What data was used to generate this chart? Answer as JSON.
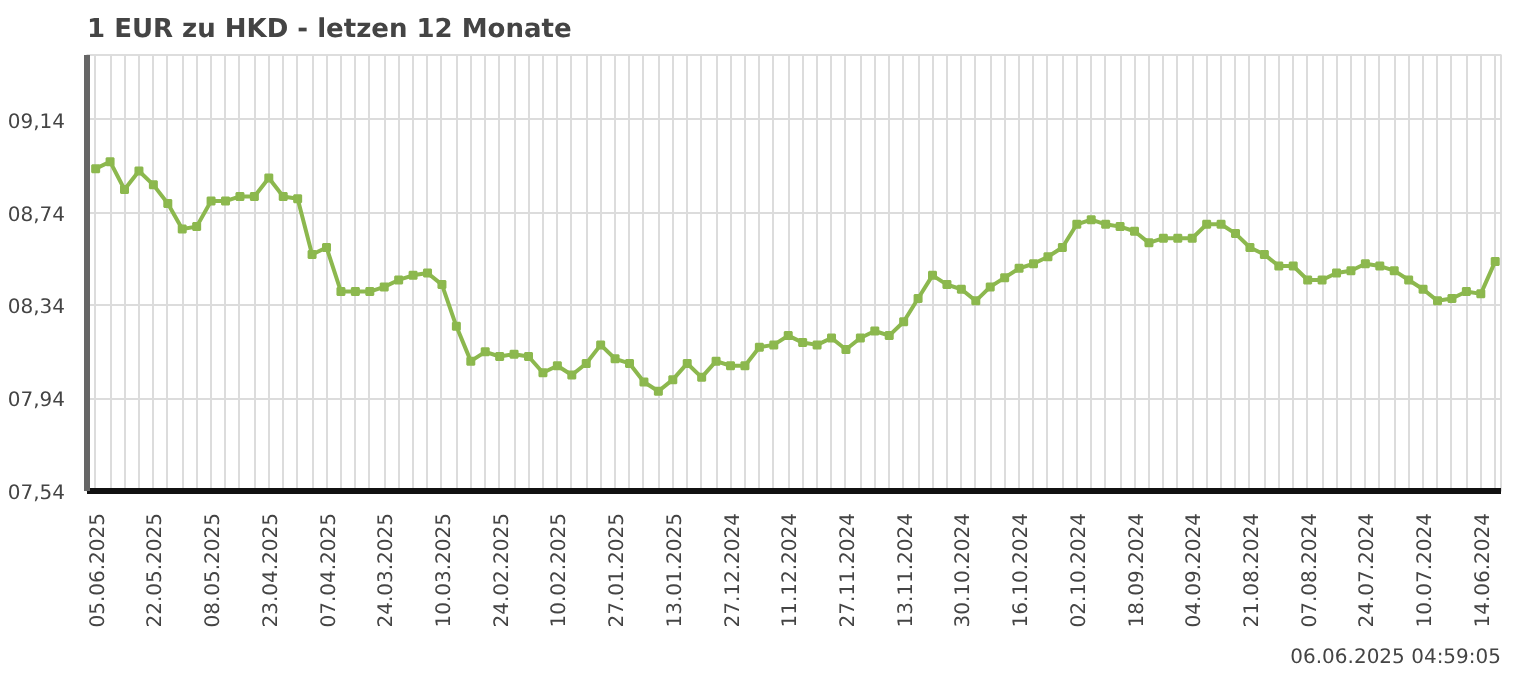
{
  "chart_data": {
    "type": "line",
    "title": "1 EUR zu HKD - letzen 12 Monate",
    "annotations": [
      "06.06.2025 04:59:05"
    ],
    "categories": [
      "05.06.2025",
      null,
      null,
      null,
      "22.05.2025",
      null,
      null,
      null,
      "08.05.2025",
      null,
      null,
      null,
      "23.04.2025",
      null,
      null,
      null,
      "07.04.2025",
      null,
      null,
      null,
      "24.03.2025",
      null,
      null,
      null,
      "10.03.2025",
      null,
      null,
      null,
      "24.02.2025",
      null,
      null,
      null,
      "10.02.2025",
      null,
      null,
      null,
      "27.01.2025",
      null,
      null,
      null,
      "13.01.2025",
      null,
      null,
      null,
      "27.12.2024",
      null,
      null,
      null,
      "11.12.2024",
      null,
      null,
      null,
      "27.11.2024",
      null,
      null,
      null,
      "13.11.2024",
      null,
      null,
      null,
      "30.10.2024",
      null,
      null,
      null,
      "16.10.2024",
      null,
      null,
      null,
      "02.10.2024",
      null,
      null,
      null,
      "18.09.2024",
      null,
      null,
      null,
      "04.09.2024",
      null,
      null,
      null,
      "21.08.2024",
      null,
      null,
      null,
      "07.08.2024",
      null,
      null,
      null,
      "24.07.2024",
      null,
      null,
      null,
      "10.07.2024",
      null,
      null,
      null,
      "14.06.2024",
      null
    ],
    "series": [
      {
        "color": "#8cb84e",
        "values": [
          8.93,
          8.96,
          8.84,
          8.92,
          8.86,
          8.78,
          8.67,
          8.68,
          8.79,
          8.79,
          8.81,
          8.81,
          8.89,
          8.81,
          8.8,
          8.56,
          8.59,
          8.4,
          8.4,
          8.4,
          8.42,
          8.45,
          8.47,
          8.48,
          8.43,
          8.25,
          8.1,
          8.14,
          8.12,
          8.13,
          8.12,
          8.05,
          8.08,
          8.04,
          8.09,
          8.17,
          8.11,
          8.09,
          8.01,
          7.97,
          8.02,
          8.09,
          8.03,
          8.1,
          8.08,
          8.08,
          8.16,
          8.17,
          8.21,
          8.18,
          8.17,
          8.2,
          8.15,
          8.2,
          8.23,
          8.21,
          8.27,
          8.37,
          8.47,
          8.43,
          8.41,
          8.36,
          8.42,
          8.46,
          8.5,
          8.52,
          8.55,
          8.59,
          8.69,
          8.71,
          8.69,
          8.68,
          8.66,
          8.61,
          8.63,
          8.63,
          8.63,
          8.69,
          8.69,
          8.65,
          8.59,
          8.56,
          8.51,
          8.51,
          8.45,
          8.45,
          8.48,
          8.49,
          8.52,
          8.51,
          8.49,
          8.45,
          8.41,
          8.36,
          8.37,
          8.4,
          8.39,
          8.53
        ]
      }
    ],
    "ylim": [
      7.54,
      9.42
    ],
    "yticks": [
      {
        "value": 7.54,
        "label": "07,54"
      },
      {
        "value": 7.94,
        "label": "07,94"
      },
      {
        "value": 8.34,
        "label": "08,34"
      },
      {
        "value": 8.74,
        "label": "08,74"
      },
      {
        "value": 9.14,
        "label": "09,14"
      }
    ],
    "grid": true,
    "marker": "square",
    "line_style": "solid"
  }
}
